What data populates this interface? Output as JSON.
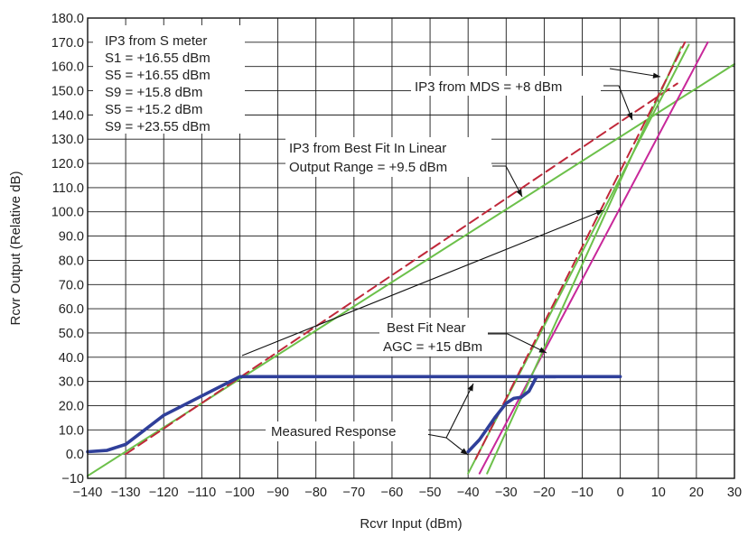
{
  "chart_data": {
    "type": "line",
    "xlabel": "Rcvr Input (dBm)",
    "ylabel": "Rcvr Output (Relative dB)",
    "xlim": [
      -140,
      30
    ],
    "ylim": [
      -10,
      180
    ],
    "grid": true,
    "x_ticks": [
      "−140",
      "−130",
      "−120",
      "−110",
      "−100",
      "−90",
      "−80",
      "−70",
      "−60",
      "−50",
      "−40",
      "−30",
      "−20",
      "−10",
      "0",
      "10",
      "20",
      "30"
    ],
    "y_ticks": [
      "−10",
      "0.0",
      "10.0",
      "20.0",
      "30.0",
      "40.0",
      "50.0",
      "60.0",
      "70.0",
      "80.0",
      "90.0",
      "100.0",
      "110.0",
      "120.0",
      "130.0",
      "140.0",
      "150.0",
      "160.0",
      "170.0",
      "180.0"
    ],
    "infobox_lines": [
      "IP3 from S meter",
      "S1 = +16.55 dBm",
      "S5 = +16.55 dBm",
      "S9 = +15.8 dBm",
      "S5 = +15.2 dBm",
      "S9 = +23.55 dBm"
    ],
    "annotations": [
      "IP3 from MDS = +8 dBm",
      "IP3 from Best Fit In Linear",
      "Output Range = +9.5 dBm",
      "Best Fit Near",
      "AGC = +15 dBm",
      "Measured Response"
    ],
    "colors": {
      "measured": "#2f3f9a",
      "green": "#6cc04a",
      "red_dashed": "#c0283a",
      "magenta": "#c8289a",
      "grid": "#1a1a1a"
    },
    "series": [
      {
        "style": "measured-left",
        "x": [
          -140,
          -135,
          -130,
          -125,
          -120,
          -110,
          -100,
          -60,
          -17
        ],
        "y": [
          1,
          1.5,
          4,
          10,
          16,
          24,
          32,
          32,
          32
        ]
      },
      {
        "style": "measured-right",
        "x": [
          -40,
          -37,
          -33,
          -30,
          -28,
          -26,
          -24,
          -22,
          0
        ],
        "y": [
          1,
          6,
          15,
          21,
          23,
          23.5,
          26,
          32,
          32
        ]
      },
      {
        "style": "green-slope1",
        "x": [
          -140,
          30
        ],
        "y": [
          -9,
          161
        ]
      },
      {
        "style": "red-dashed-slope1",
        "x": [
          -130,
          15
        ],
        "y": [
          0,
          153
        ]
      },
      {
        "style": "green-slope3a",
        "x": [
          -40,
          18
        ],
        "y": [
          -8,
          169
        ]
      },
      {
        "style": "red-dashed-slope3",
        "x": [
          -38,
          17
        ],
        "y": [
          -2,
          170
        ]
      },
      {
        "style": "green-slope3b",
        "x": [
          -35,
          16
        ],
        "y": [
          -8,
          168
        ]
      },
      {
        "style": "magenta-slope3",
        "x": [
          -37,
          23
        ],
        "y": [
          -8,
          170
        ]
      }
    ]
  }
}
